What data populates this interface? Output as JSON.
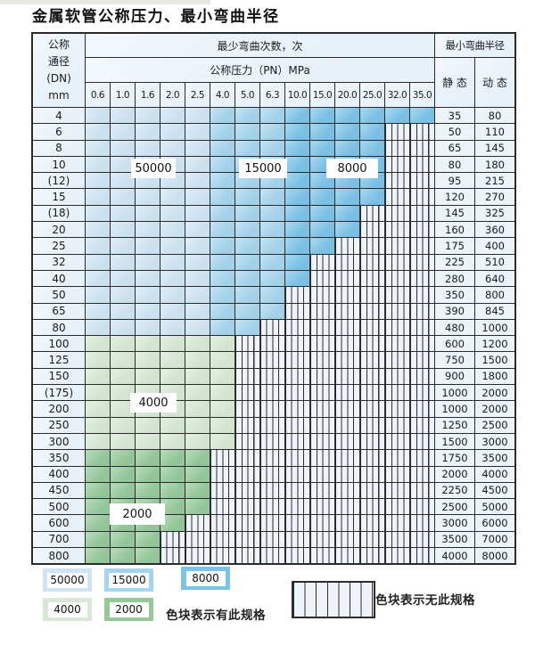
{
  "title": "金属软管公称压力、最小弯曲半径",
  "table": {
    "header": {
      "dn_lines": [
        "公称",
        "通径",
        "(DN)",
        "mm"
      ],
      "cycles": "最少弯曲次数，次",
      "pressure": "公称压力（PN）MPa",
      "radius": "最小弯曲半径",
      "static": "静 态",
      "dynamic": "动 态"
    },
    "pressure_columns": [
      "0.6",
      "1.0",
      "1.6",
      "2.0",
      "2.5",
      "4.0",
      "5.0",
      "6.3",
      "10.0",
      "15.0",
      "20.0",
      "25.0",
      "32.0",
      "35.0"
    ],
    "rows": [
      {
        "dn": "4",
        "colored": 14,
        "fill": "blue",
        "static": "35",
        "dynamic": "80"
      },
      {
        "dn": "6",
        "colored": 12,
        "fill": "blue",
        "static": "50",
        "dynamic": "110"
      },
      {
        "dn": "8",
        "colored": 12,
        "fill": "blue",
        "static": "65",
        "dynamic": "145"
      },
      {
        "dn": "10",
        "colored": 12,
        "fill": "blue",
        "static": "80",
        "dynamic": "180"
      },
      {
        "dn": "(12)",
        "colored": 12,
        "fill": "blue",
        "static": "95",
        "dynamic": "215"
      },
      {
        "dn": "15",
        "colored": 12,
        "fill": "blue",
        "static": "120",
        "dynamic": "270"
      },
      {
        "dn": "(18)",
        "colored": 11,
        "fill": "blue",
        "static": "145",
        "dynamic": "325"
      },
      {
        "dn": "20",
        "colored": 11,
        "fill": "blue",
        "static": "160",
        "dynamic": "360"
      },
      {
        "dn": "25",
        "colored": 10,
        "fill": "blue",
        "static": "175",
        "dynamic": "400"
      },
      {
        "dn": "32",
        "colored": 9,
        "fill": "blue",
        "static": "225",
        "dynamic": "510"
      },
      {
        "dn": "40",
        "colored": 9,
        "fill": "blue",
        "static": "280",
        "dynamic": "640"
      },
      {
        "dn": "50",
        "colored": 8,
        "fill": "blue",
        "static": "350",
        "dynamic": "800"
      },
      {
        "dn": "65",
        "colored": 8,
        "fill": "blue",
        "static": "390",
        "dynamic": "845"
      },
      {
        "dn": "80",
        "colored": 7,
        "fill": "blue",
        "static": "480",
        "dynamic": "1000"
      },
      {
        "dn": "100",
        "colored": 6,
        "fill": "g4000",
        "static": "600",
        "dynamic": "1200"
      },
      {
        "dn": "125",
        "colored": 6,
        "fill": "g4000",
        "static": "750",
        "dynamic": "1500"
      },
      {
        "dn": "150",
        "colored": 6,
        "fill": "g4000",
        "static": "900",
        "dynamic": "1800"
      },
      {
        "dn": "(175)",
        "colored": 6,
        "fill": "g4000",
        "static": "1000",
        "dynamic": "2000"
      },
      {
        "dn": "200",
        "colored": 6,
        "fill": "g4000",
        "static": "1000",
        "dynamic": "2000"
      },
      {
        "dn": "250",
        "colored": 6,
        "fill": "g4000",
        "static": "1250",
        "dynamic": "2500"
      },
      {
        "dn": "300",
        "colored": 6,
        "fill": "g4000",
        "static": "1500",
        "dynamic": "3000"
      },
      {
        "dn": "350",
        "colored": 5,
        "fill": "g2000",
        "static": "1750",
        "dynamic": "3500"
      },
      {
        "dn": "400",
        "colored": 5,
        "fill": "g2000",
        "static": "2000",
        "dynamic": "4000"
      },
      {
        "dn": "450",
        "colored": 5,
        "fill": "g2000",
        "static": "2250",
        "dynamic": "4500"
      },
      {
        "dn": "500",
        "colored": 5,
        "fill": "g2000",
        "static": "2500",
        "dynamic": "5000"
      },
      {
        "dn": "600",
        "colored": 4,
        "fill": "g2000",
        "static": "3000",
        "dynamic": "6000"
      },
      {
        "dn": "700",
        "colored": 3,
        "fill": "g2000",
        "static": "3500",
        "dynamic": "7000"
      },
      {
        "dn": "800",
        "colored": 3,
        "fill": "g2000",
        "static": "4000",
        "dynamic": "8000"
      }
    ]
  },
  "zone_labels": [
    {
      "text": "50000"
    },
    {
      "text": "15000"
    },
    {
      "text": "8000"
    },
    {
      "text": "4000"
    },
    {
      "text": "2000"
    }
  ],
  "legend": {
    "swatches": [
      {
        "label": "50000",
        "color": "#cfe5f4"
      },
      {
        "label": "15000",
        "color": "#a5d5ee"
      },
      {
        "label": "8000",
        "color": "#7cc3e8"
      },
      {
        "label": "4000",
        "color": "#d7e9d4"
      },
      {
        "label": "2000",
        "color": "#95c99a"
      }
    ],
    "has_spec_text": "色块表示有此规格",
    "no_spec_text": "色块表示无此规格"
  },
  "colors": {
    "c50000": "#cfe5f4",
    "c15000": "#a5d5ee",
    "c8000": "#7cc3e8",
    "c4000": "#d7e9d4",
    "c2000": "#95c99a",
    "chead": "#e7f1f9",
    "cval": "#ecf3fa",
    "chatch": "#eef4fa",
    "grid": "#2b2b2b"
  }
}
